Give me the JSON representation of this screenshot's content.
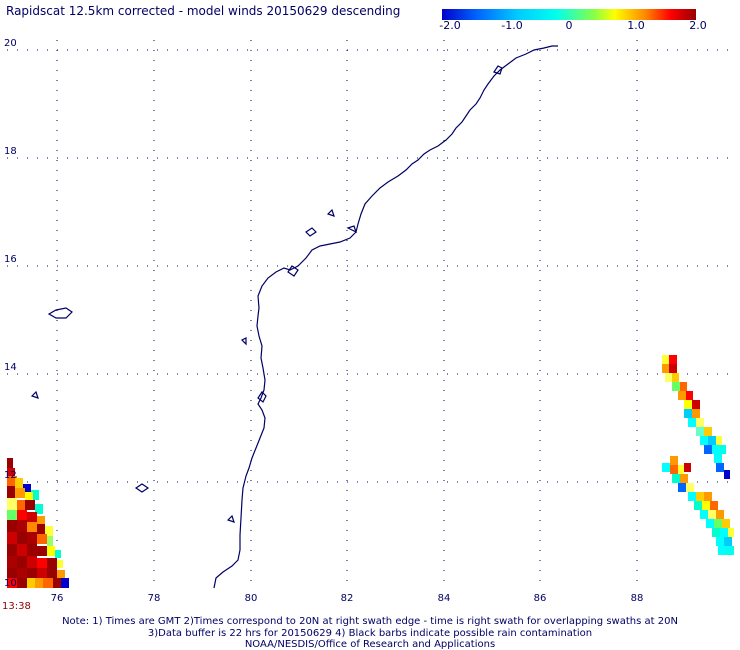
{
  "title": "Rapidscat 12.5km corrected - model winds 20150629 descending",
  "colorbar": {
    "labels": [
      "-2.0",
      "-1.0",
      "0",
      "1.0",
      "2.0"
    ],
    "stops": [
      "#0000cc",
      "#0099ff",
      "#00ffff",
      "#66ff66",
      "#ffff00",
      "#ff9900",
      "#ff0000",
      "#990000"
    ]
  },
  "lat_labels": [
    "20",
    "18",
    "16",
    "14",
    "12",
    "10"
  ],
  "lon_labels": [
    "76",
    "78",
    "80",
    "82",
    "84",
    "86",
    "88"
  ],
  "time_label": "13:38",
  "notes": [
    "Note: 1) Times are GMT 2)Times correspond to 20N at right swath edge - time is right swath for overlapping swaths at 20N",
    "3)Data buffer is 22 hrs for 20150629 4) Black barbs indicate possible rain contamination",
    "NOAA/NESDIS/Office of Research and Applications"
  ],
  "colors": {
    "coast": "#000066",
    "grid": "#000066"
  }
}
